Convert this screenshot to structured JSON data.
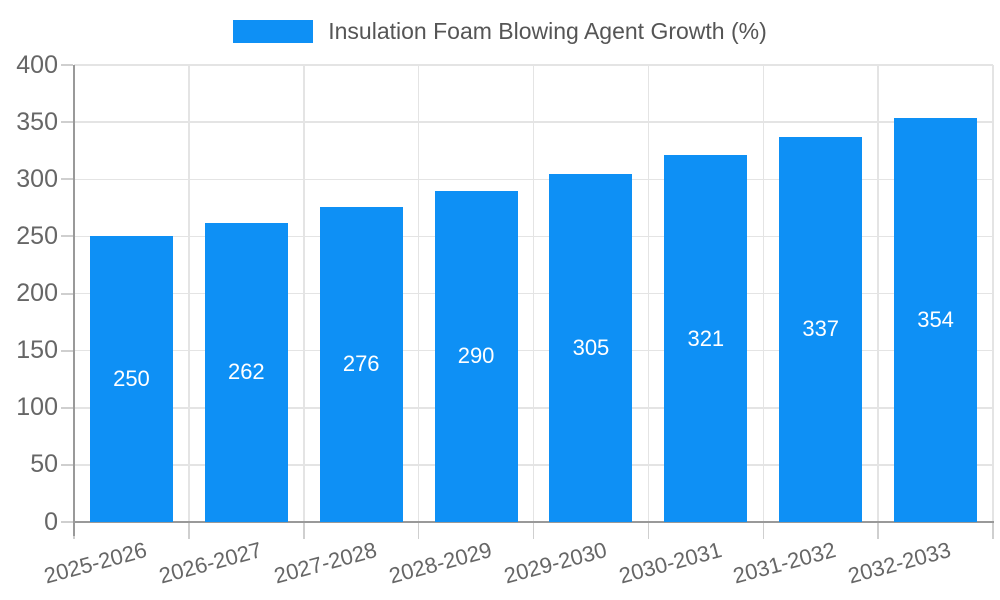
{
  "legend": {
    "label": "Insulation Foam Blowing Agent Growth (%)"
  },
  "chart_data": {
    "type": "bar",
    "title": "Insulation Foam Blowing Agent Growth (%)",
    "categories": [
      "2025-2026",
      "2026-2027",
      "2027-2028",
      "2028-2029",
      "2029-2030",
      "2030-2031",
      "2031-2032",
      "2032-2033"
    ],
    "values": [
      250,
      262,
      276,
      290,
      305,
      321,
      337,
      354
    ],
    "series": [
      {
        "name": "Insulation Foam Blowing Agent Growth (%)",
        "values": [
          250,
          262,
          276,
          290,
          305,
          321,
          337,
          354
        ]
      }
    ],
    "xlabel": "",
    "ylabel": "",
    "ylim": [
      0,
      400
    ],
    "yticks": [
      0,
      50,
      100,
      150,
      200,
      250,
      300,
      350,
      400
    ],
    "grid": true,
    "legend_position": "top-center",
    "bar_labels_inside": true,
    "colors": {
      "bar": "#0E90F5",
      "bar_label": "#FFFFFF",
      "axis": "#999999",
      "grid": "#E4E4E4",
      "tick": "#CFCFCF",
      "tick_label": "#666666",
      "legend_text": "#555555",
      "background": "#FFFFFF"
    }
  }
}
